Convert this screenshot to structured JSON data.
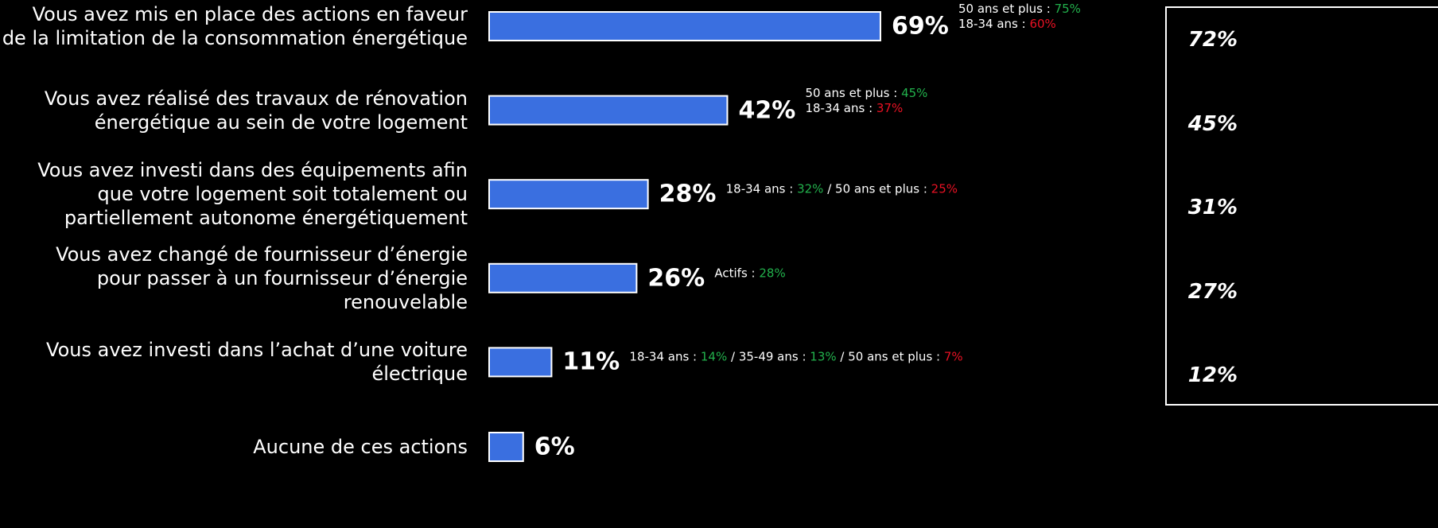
{
  "chart_data": {
    "type": "bar",
    "orientation": "horizontal",
    "categories": [
      "Vous avez mis en place des actions en faveur\nde la limitation de la consommation énergétique",
      "Vous avez réalisé des travaux de rénovation\nénergétique au sein de votre logement",
      "Vous avez investi dans des équipements afin\nque votre logement soit totalement ou\npartiellement autonome énergétiquement",
      "Vous avez changé de fournisseur d’énergie\npour passer à un fournisseur d’énergie\nrenouvelable",
      "Vous avez investi dans l’achat d’une voiture\nélectrique",
      "Aucune de ces actions"
    ],
    "values": [
      69,
      42,
      28,
      26,
      11,
      6
    ],
    "value_labels": [
      "69%",
      "42%",
      "28%",
      "26%",
      "11%",
      "6%"
    ],
    "color": "#3a6fe0",
    "xlim": [
      0,
      100
    ],
    "annotations": [
      [
        [
          {
            "text": "50 ans et plus : "
          },
          {
            "text": "75%",
            "color": "#22b14c"
          }
        ],
        [
          {
            "text": "18-34 ans : "
          },
          {
            "text": "60%",
            "color": "#e81123"
          }
        ]
      ],
      [
        [
          {
            "text": "50 ans et plus : "
          },
          {
            "text": "45%",
            "color": "#22b14c"
          }
        ],
        [
          {
            "text": "18-34 ans : "
          },
          {
            "text": "37%",
            "color": "#e81123"
          }
        ]
      ],
      [
        [
          {
            "text": "18-34 ans : "
          },
          {
            "text": "32%",
            "color": "#22b14c"
          },
          {
            "text": " / 50 ans et plus : "
          },
          {
            "text": "25%",
            "color": "#e81123"
          }
        ]
      ],
      [
        [
          {
            "text": "Actifs : "
          },
          {
            "text": "28%",
            "color": "#22b14c"
          }
        ]
      ],
      [
        [
          {
            "text": "18-34 ans : "
          },
          {
            "text": "14%",
            "color": "#22b14c"
          },
          {
            "text": " / 35-49 ans : "
          },
          {
            "text": "13%",
            "color": "#22b14c"
          },
          {
            "text": " / 50 ans et plus : "
          },
          {
            "text": "7%",
            "color": "#e81123"
          }
        ]
      ],
      []
    ],
    "comparison": {
      "values": [
        72,
        45,
        31,
        27,
        12,
        null
      ],
      "value_labels": [
        "72%",
        "45%",
        "31%",
        "27%",
        "12%",
        null
      ]
    }
  }
}
